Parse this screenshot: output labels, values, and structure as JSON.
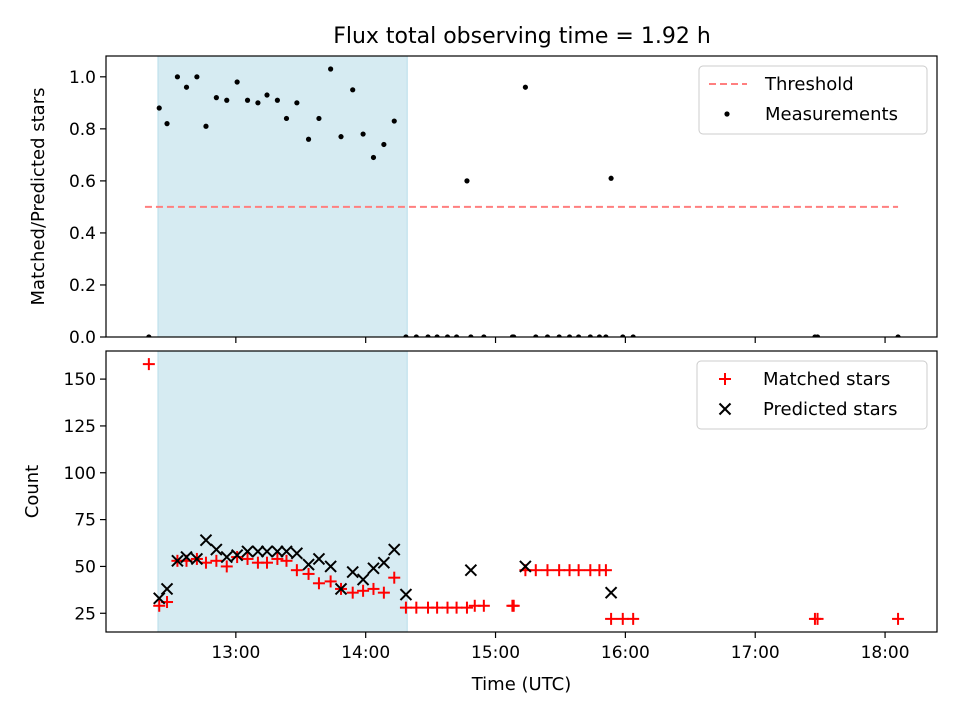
{
  "title": "Flux total observing time = 1.92 h",
  "chart_data": [
    {
      "type": "scatter",
      "ylabel": "Matched/Predicted stars",
      "xlabel": "",
      "x_unit": "hours UTC",
      "xlim": [
        12.0,
        18.4
      ],
      "ylim": [
        0,
        1.08
      ],
      "yticks": [
        0.0,
        0.2,
        0.4,
        0.6,
        0.8,
        1.0
      ],
      "ytick_labels": [
        "0.0",
        "0.2",
        "0.4",
        "0.6",
        "0.8",
        "1.0"
      ],
      "xticks": [
        13,
        14,
        15,
        16,
        17,
        18
      ],
      "legend": {
        "placement": "top-right",
        "entries": [
          {
            "label": "Threshold",
            "kind": "dashed-line",
            "color": "#ff7f7f"
          },
          {
            "label": "Measurements",
            "kind": "dot",
            "color": "#000000"
          }
        ]
      },
      "shaded_region": {
        "x_start": 12.4,
        "x_end": 14.32,
        "color": "#add8e6"
      },
      "series": [
        {
          "name": "Threshold",
          "type": "line",
          "x": [
            12.3,
            18.1
          ],
          "values": [
            0.5,
            0.5
          ]
        },
        {
          "name": "Measurements",
          "type": "scatter",
          "x": [
            12.33,
            12.41,
            12.47,
            12.55,
            12.62,
            12.7,
            12.77,
            12.85,
            12.93,
            13.01,
            13.09,
            13.17,
            13.24,
            13.32,
            13.39,
            13.47,
            13.56,
            13.64,
            13.73,
            13.81,
            13.9,
            13.98,
            14.06,
            14.14,
            14.22,
            14.31,
            14.39,
            14.48,
            14.55,
            14.63,
            14.7,
            14.78,
            14.81,
            14.91,
            15.13,
            15.14,
            15.23,
            15.31,
            15.4,
            15.49,
            15.57,
            15.64,
            15.73,
            15.8,
            15.85,
            15.89,
            15.98,
            16.06,
            17.46,
            17.48,
            18.1
          ],
          "values": [
            0.0,
            0.88,
            0.82,
            1.0,
            0.96,
            1.0,
            0.81,
            0.92,
            0.91,
            0.98,
            0.91,
            0.9,
            0.93,
            0.91,
            0.84,
            0.9,
            0.76,
            0.84,
            1.03,
            0.77,
            0.95,
            0.78,
            0.69,
            0.74,
            0.83,
            0.0,
            0.0,
            0.0,
            0.0,
            0.0,
            0.0,
            0.6,
            0.0,
            0.0,
            0.0,
            0.0,
            0.96,
            0.0,
            0.0,
            0.0,
            0.0,
            0.0,
            0.0,
            0.0,
            0.0,
            0.61,
            0.0,
            0.0,
            0.0,
            0.0,
            0.0
          ]
        }
      ]
    },
    {
      "type": "scatter",
      "ylabel": "Count",
      "xlabel": "Time (UTC)",
      "x_unit": "hours UTC",
      "xlim": [
        12.0,
        18.4
      ],
      "ylim": [
        15,
        165
      ],
      "yticks": [
        25,
        50,
        75,
        100,
        125,
        150
      ],
      "ytick_labels": [
        "25",
        "50",
        "75",
        "100",
        "125",
        "150"
      ],
      "xticks": [
        13,
        14,
        15,
        16,
        17,
        18
      ],
      "xtick_labels": [
        "13:00",
        "14:00",
        "15:00",
        "16:00",
        "17:00",
        "18:00"
      ],
      "legend": {
        "placement": "top-right",
        "entries": [
          {
            "label": "Matched stars",
            "kind": "plus",
            "color": "#ff0000"
          },
          {
            "label": "Predicted stars",
            "kind": "x",
            "color": "#000000"
          }
        ]
      },
      "shaded_region": {
        "x_start": 12.4,
        "x_end": 14.32,
        "color": "#add8e6"
      },
      "series": [
        {
          "name": "Matched stars",
          "marker": "plus",
          "color": "#ff0000",
          "x": [
            12.33,
            12.41,
            12.47,
            12.55,
            12.62,
            12.7,
            12.77,
            12.85,
            12.93,
            13.01,
            13.09,
            13.17,
            13.24,
            13.32,
            13.39,
            13.47,
            13.56,
            13.64,
            13.73,
            13.81,
            13.9,
            13.98,
            14.06,
            14.14,
            14.22,
            14.31,
            14.39,
            14.48,
            14.55,
            14.63,
            14.7,
            14.78,
            14.84,
            14.91,
            15.13,
            15.14,
            15.23,
            15.31,
            15.4,
            15.49,
            15.57,
            15.64,
            15.73,
            15.8,
            15.85,
            15.89,
            15.98,
            16.06,
            17.46,
            17.48,
            18.1
          ],
          "values": [
            158,
            29,
            31,
            53,
            53,
            54,
            52,
            53,
            50,
            55,
            54,
            52,
            52,
            54,
            53,
            48,
            46,
            41,
            42,
            38,
            36,
            37,
            38,
            36,
            44,
            28,
            28,
            28,
            28,
            28,
            28,
            28,
            29,
            29,
            29,
            29,
            48,
            48,
            48,
            48,
            48,
            48,
            48,
            48,
            48,
            22,
            22,
            22,
            22,
            22,
            22
          ]
        },
        {
          "name": "Predicted stars",
          "marker": "x",
          "color": "#000000",
          "x": [
            12.41,
            12.47,
            12.55,
            12.62,
            12.7,
            12.77,
            12.85,
            12.93,
            13.01,
            13.09,
            13.17,
            13.24,
            13.32,
            13.39,
            13.47,
            13.56,
            13.64,
            13.73,
            13.81,
            13.9,
            13.98,
            14.06,
            14.14,
            14.22,
            14.31,
            14.81,
            15.23,
            15.89
          ],
          "values": [
            33,
            38,
            53,
            55,
            54,
            64,
            59,
            55,
            56,
            58,
            58,
            58,
            58,
            58,
            57,
            51,
            54,
            50,
            38,
            47,
            43,
            49,
            52,
            59,
            35,
            48,
            50,
            36
          ]
        }
      ]
    }
  ]
}
